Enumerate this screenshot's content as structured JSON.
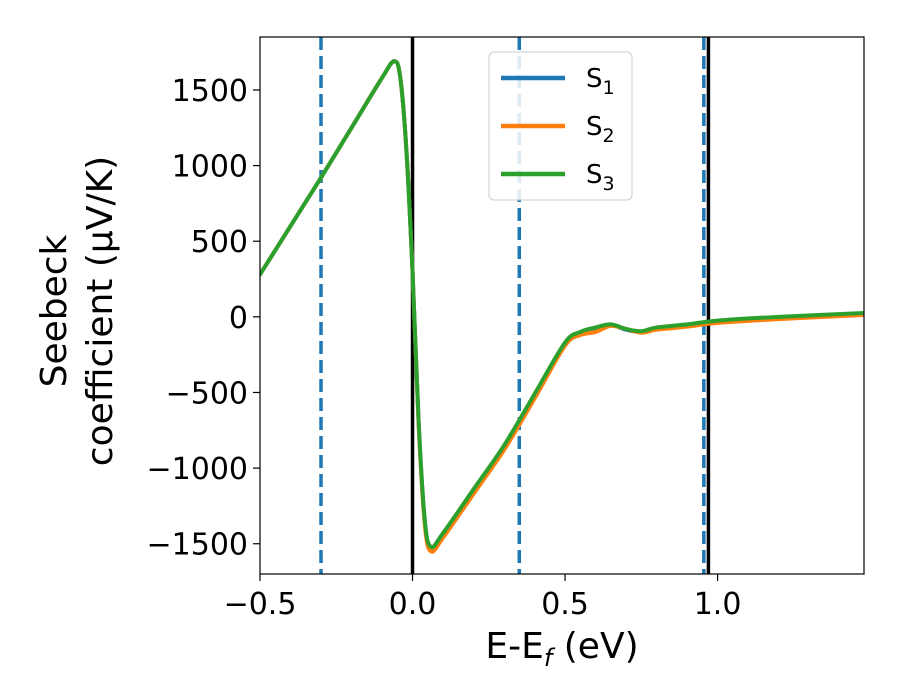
{
  "chart_data": {
    "type": "line",
    "xlabel": "E-E",
    "xlabel_sub": "f",
    "xlabel_unit": " (eV)",
    "ylabel_line1": "Seebeck",
    "ylabel_line2": "coefficient  (μV/K)",
    "xlim": [
      -0.5,
      1.48
    ],
    "ylim": [
      -1700,
      1850
    ],
    "x_ticks": [
      -0.5,
      0.0,
      0.5,
      1.0
    ],
    "x_tick_labels": [
      "−0.5",
      "0.0",
      "0.5",
      "1.0"
    ],
    "y_ticks": [
      -1500,
      -1000,
      -500,
      0,
      500,
      1000,
      1500
    ],
    "y_tick_labels": [
      "−1500",
      "−1000",
      "−500",
      "0",
      "500",
      "1000",
      "1500"
    ],
    "grid": false,
    "legend_position": "top-center",
    "vertical_lines": [
      {
        "x": -0.3,
        "style": "dashed",
        "color": "#1f77b4"
      },
      {
        "x": 0.0,
        "style": "solid",
        "color": "#000000"
      },
      {
        "x": 0.35,
        "style": "dashed",
        "color": "#1f77b4"
      },
      {
        "x": 0.955,
        "style": "dashed",
        "color": "#1f77b4"
      },
      {
        "x": 0.97,
        "style": "solid",
        "color": "#000000"
      }
    ],
    "series": [
      {
        "name": "S",
        "sub": "1",
        "color": "#1f77b4",
        "x": [
          -0.5,
          -0.4,
          -0.3,
          -0.2,
          -0.1,
          -0.06,
          -0.04,
          -0.02,
          0.0,
          0.02,
          0.04,
          0.06,
          0.1,
          0.2,
          0.3,
          0.4,
          0.5,
          0.55,
          0.6,
          0.65,
          0.7,
          0.75,
          0.8,
          0.9,
          1.0,
          1.2,
          1.48
        ],
        "y": [
          280,
          600,
          920,
          1250,
          1580,
          1690,
          1580,
          1100,
          300,
          -700,
          -1350,
          -1530,
          -1440,
          -1150,
          -860,
          -520,
          -180,
          -110,
          -85,
          -55,
          -85,
          -100,
          -75,
          -55,
          -30,
          -5,
          20
        ]
      },
      {
        "name": "S",
        "sub": "2",
        "color": "#ff7f0e",
        "x": [
          -0.5,
          -0.4,
          -0.3,
          -0.2,
          -0.1,
          -0.06,
          -0.04,
          -0.02,
          0.0,
          0.02,
          0.04,
          0.06,
          0.1,
          0.2,
          0.3,
          0.4,
          0.5,
          0.55,
          0.6,
          0.65,
          0.7,
          0.75,
          0.8,
          0.9,
          1.0,
          1.2,
          1.48
        ],
        "y": [
          280,
          600,
          920,
          1250,
          1580,
          1690,
          1580,
          1100,
          300,
          -710,
          -1370,
          -1550,
          -1460,
          -1170,
          -880,
          -540,
          -190,
          -120,
          -100,
          -60,
          -80,
          -105,
          -85,
          -65,
          -40,
          -15,
          12
        ]
      },
      {
        "name": "S",
        "sub": "3",
        "color": "#2ca02c",
        "x": [
          -0.5,
          -0.4,
          -0.3,
          -0.2,
          -0.1,
          -0.06,
          -0.04,
          -0.02,
          0.0,
          0.02,
          0.04,
          0.06,
          0.1,
          0.2,
          0.3,
          0.4,
          0.5,
          0.55,
          0.6,
          0.65,
          0.7,
          0.75,
          0.8,
          0.9,
          1.0,
          1.2,
          1.48
        ],
        "y": [
          280,
          600,
          920,
          1250,
          1580,
          1690,
          1580,
          1100,
          300,
          -690,
          -1340,
          -1520,
          -1430,
          -1140,
          -850,
          -510,
          -170,
          -100,
          -70,
          -50,
          -80,
          -95,
          -70,
          -50,
          -25,
          0,
          25
        ]
      }
    ]
  }
}
